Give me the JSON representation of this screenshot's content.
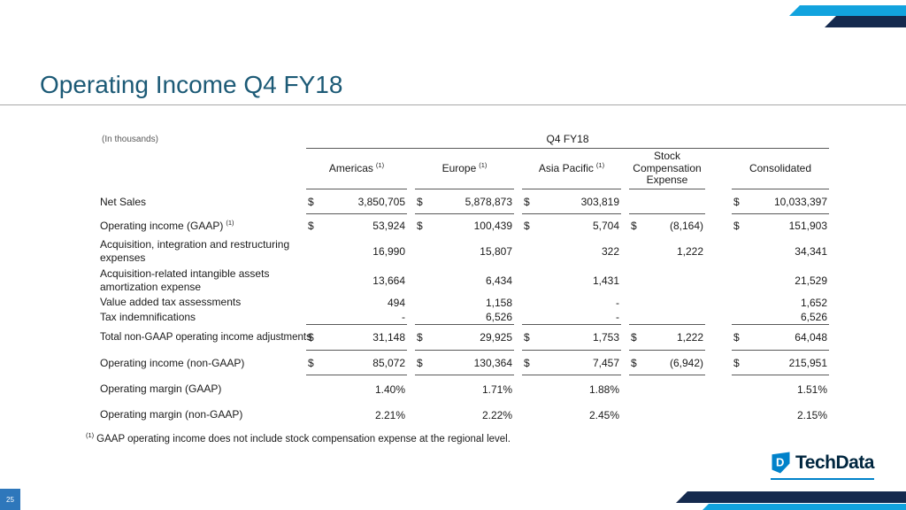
{
  "slide": {
    "title": "Operating Income Q4 FY18",
    "page_number": "25",
    "footnote": {
      "marker": "(1)",
      "text": "GAAP operating income does not include stock compensation expense at the regional level."
    },
    "logo": {
      "brand": "TechData"
    },
    "colors": {
      "title": "#1c5a76",
      "accent_cyan": "#12A3DE",
      "accent_navy": "#152A4E",
      "brand_blue": "#0082CA",
      "brand_navy": "#00263F",
      "page_box_blue": "#2E77BB"
    }
  },
  "table": {
    "units_label": "(In thousands)",
    "period_header": "Q4 FY18",
    "columns": [
      {
        "label": "Americas",
        "footnote_ref": "(1)"
      },
      {
        "label": "Europe",
        "footnote_ref": "(1)"
      },
      {
        "label": "Asia Pacific",
        "footnote_ref": "(1)"
      },
      {
        "label": "Stock Compensation Expense",
        "footnote_ref": ""
      },
      {
        "label": "Consolidated",
        "footnote_ref": ""
      }
    ],
    "rows": [
      {
        "label": "Net Sales",
        "label_footnote_ref": "",
        "rule_below": true,
        "cells": [
          {
            "currency": "$",
            "value": "3,850,705"
          },
          {
            "currency": "$",
            "value": "5,878,873"
          },
          {
            "currency": "$",
            "value": "303,819"
          },
          {
            "currency": "",
            "value": ""
          },
          {
            "currency": "$",
            "value": "10,033,397"
          }
        ]
      },
      {
        "label": "Operating income (GAAP)",
        "label_footnote_ref": "(1)",
        "rule_below": false,
        "cells": [
          {
            "currency": "$",
            "value": "53,924"
          },
          {
            "currency": "$",
            "value": "100,439"
          },
          {
            "currency": "$",
            "value": "5,704"
          },
          {
            "currency": "$",
            "value": "(8,164)"
          },
          {
            "currency": "$",
            "value": "151,903"
          }
        ]
      },
      {
        "label": "Acquisition, integration and restructuring expenses",
        "label_footnote_ref": "",
        "rule_below": false,
        "cells": [
          {
            "currency": "",
            "value": "16,990"
          },
          {
            "currency": "",
            "value": "15,807"
          },
          {
            "currency": "",
            "value": "322"
          },
          {
            "currency": "",
            "value": "1,222"
          },
          {
            "currency": "",
            "value": "34,341"
          }
        ]
      },
      {
        "label": "Acquisition-related intangible assets amortization expense",
        "label_footnote_ref": "",
        "rule_below": false,
        "cells": [
          {
            "currency": "",
            "value": "13,664"
          },
          {
            "currency": "",
            "value": "6,434"
          },
          {
            "currency": "",
            "value": "1,431"
          },
          {
            "currency": "",
            "value": ""
          },
          {
            "currency": "",
            "value": "21,529"
          }
        ]
      },
      {
        "label": "Value added tax assessments",
        "label_footnote_ref": "",
        "rule_below": false,
        "cells": [
          {
            "currency": "",
            "value": "494"
          },
          {
            "currency": "",
            "value": "1,158"
          },
          {
            "currency": "",
            "value": "-"
          },
          {
            "currency": "",
            "value": ""
          },
          {
            "currency": "",
            "value": "1,652"
          }
        ]
      },
      {
        "label": "Tax indemnifications",
        "label_footnote_ref": "",
        "rule_below": true,
        "cells": [
          {
            "currency": "",
            "value": "-"
          },
          {
            "currency": "",
            "value": "6,526"
          },
          {
            "currency": "",
            "value": "-"
          },
          {
            "currency": "",
            "value": ""
          },
          {
            "currency": "",
            "value": "6,526"
          }
        ]
      },
      {
        "label": "Total non-GAAP operating income adjustments",
        "label_footnote_ref": "",
        "rule_below": true,
        "cells": [
          {
            "currency": "$",
            "value": "31,148"
          },
          {
            "currency": "$",
            "value": "29,925"
          },
          {
            "currency": "$",
            "value": "1,753"
          },
          {
            "currency": "$",
            "value": "1,222"
          },
          {
            "currency": "$",
            "value": "64,048"
          }
        ]
      },
      {
        "label": "Operating income (non-GAAP)",
        "label_footnote_ref": "",
        "rule_below": true,
        "cells": [
          {
            "currency": "$",
            "value": "85,072"
          },
          {
            "currency": "$",
            "value": "130,364"
          },
          {
            "currency": "$",
            "value": "7,457"
          },
          {
            "currency": "$",
            "value": "(6,942)"
          },
          {
            "currency": "$",
            "value": "215,951"
          }
        ]
      },
      {
        "label": "Operating margin (GAAP)",
        "label_footnote_ref": "",
        "rule_below": false,
        "cells": [
          {
            "currency": "",
            "value": "1.40%"
          },
          {
            "currency": "",
            "value": "1.71%"
          },
          {
            "currency": "",
            "value": "1.88%"
          },
          {
            "currency": "",
            "value": ""
          },
          {
            "currency": "",
            "value": "1.51%"
          }
        ]
      },
      {
        "label": "Operating margin (non-GAAP)",
        "label_footnote_ref": "",
        "rule_below": false,
        "cells": [
          {
            "currency": "",
            "value": "2.21%"
          },
          {
            "currency": "",
            "value": "2.22%"
          },
          {
            "currency": "",
            "value": "2.45%"
          },
          {
            "currency": "",
            "value": ""
          },
          {
            "currency": "",
            "value": "2.15%"
          }
        ]
      }
    ]
  }
}
